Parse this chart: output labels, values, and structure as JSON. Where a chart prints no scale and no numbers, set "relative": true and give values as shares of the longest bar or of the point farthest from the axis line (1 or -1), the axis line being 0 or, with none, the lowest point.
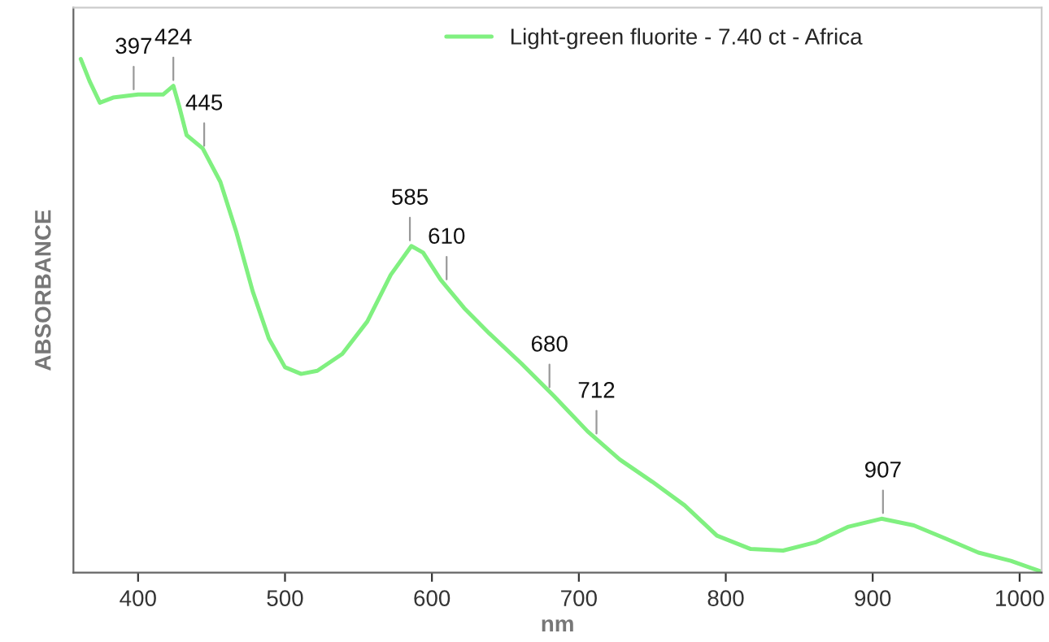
{
  "chart_data": {
    "type": "line",
    "relative": true,
    "xlabel": "nm",
    "ylabel": "ABSORBANCE",
    "legend": "top",
    "grid": false,
    "marker": "none",
    "line_style": "solid",
    "xlim": [
      356,
      1015
    ],
    "xticks": [
      400,
      500,
      600,
      700,
      800,
      900,
      1000
    ],
    "series": [
      {
        "name": "Light-green fluorite - 7.40 ct - Africa",
        "color": "#80f080",
        "x": [
          361,
          367,
          374,
          383,
          400,
          417,
          424,
          428,
          433,
          444,
          456,
          467,
          478,
          489,
          500,
          511,
          522,
          539,
          556,
          572,
          586,
          594,
          606,
          622,
          639,
          661,
          683,
          706,
          728,
          750,
          772,
          794,
          817,
          839,
          861,
          883,
          906,
          928,
          950,
          972,
          994,
          1014
        ],
        "values": [
          1.0,
          0.957,
          0.915,
          0.925,
          0.931,
          0.931,
          0.948,
          0.908,
          0.852,
          0.826,
          0.761,
          0.662,
          0.548,
          0.456,
          0.4,
          0.387,
          0.393,
          0.426,
          0.489,
          0.58,
          0.636,
          0.623,
          0.57,
          0.515,
          0.466,
          0.407,
          0.344,
          0.275,
          0.22,
          0.177,
          0.131,
          0.072,
          0.046,
          0.043,
          0.059,
          0.089,
          0.105,
          0.092,
          0.066,
          0.039,
          0.023,
          0.003
        ]
      }
    ],
    "annotations": [
      {
        "text": "397",
        "x": 397,
        "y": 0.93
      },
      {
        "text": "424",
        "x": 424,
        "y": 0.948
      },
      {
        "text": "445",
        "x": 445,
        "y": 0.82
      },
      {
        "text": "585",
        "x": 585,
        "y": 0.636
      },
      {
        "text": "610",
        "x": 610,
        "y": 0.56
      },
      {
        "text": "680",
        "x": 680,
        "y": 0.35
      },
      {
        "text": "712",
        "x": 712,
        "y": 0.26
      },
      {
        "text": "907",
        "x": 907,
        "y": 0.105
      }
    ]
  }
}
